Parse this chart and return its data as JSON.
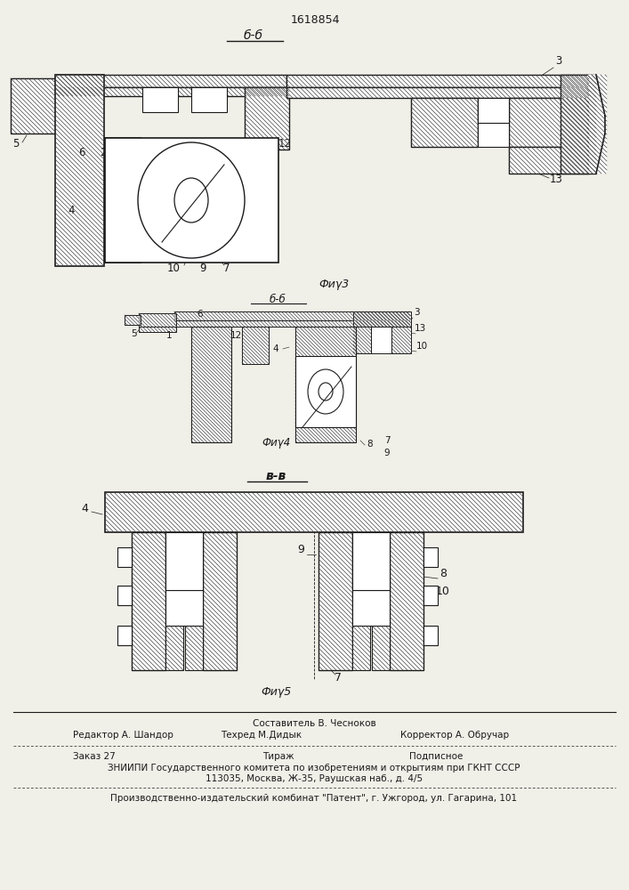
{
  "title_patent": "1618854",
  "fig3_section": "б-б",
  "fig3_caption": "Фиγ3",
  "fig4_section": "б-б",
  "fig4_caption": "Фиγ4",
  "fig5_section": "в-в",
  "fig5_caption": "Фиγ5",
  "footer_sostavitel": "Составитель В. Чесноков",
  "footer_redaktor": "Редактор А. Шандор",
  "footer_tehred": "Техред М.Дидык",
  "footer_korrektor": "Корректор А. Обручар",
  "footer_zakaz": "Заказ 27",
  "footer_tirazh": "Тираж",
  "footer_podpisnoe": "Подписное",
  "footer_zniipi": "ЗНИИПИ Государственного комитета по изобретениям и открытиям при ГКНТ СССР",
  "footer_address": "113035, Москва, Ж-35, Раушская наб., д. 4/5",
  "footer_kombinat": "Производственно-издательский комбинат \"Патент\", г. Ужгород, ул. Гагарина, 101",
  "bg_color": "#f0efe8",
  "hatch_color": "#444444",
  "line_color": "#1a1a1a"
}
